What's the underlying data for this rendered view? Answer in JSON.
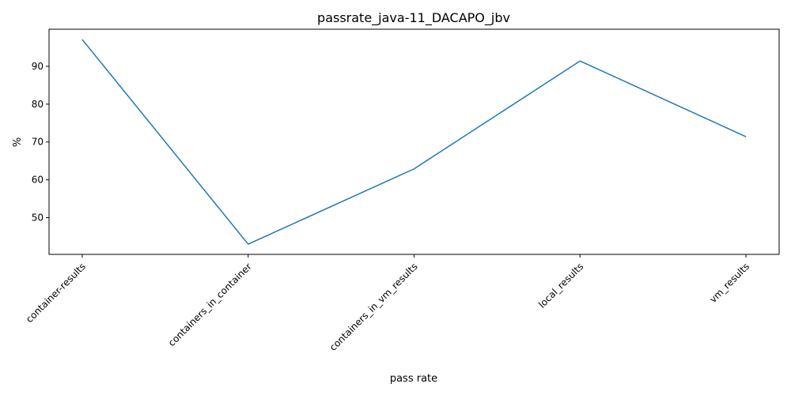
{
  "chart_data": {
    "type": "line",
    "title": "passrate_java-11_DACAPO_jbv",
    "xlabel": "pass rate",
    "ylabel": "%",
    "categories": [
      "container-results",
      "containers_in_container",
      "containers_in_vm_results",
      "local_results",
      "vm_results"
    ],
    "series": [
      {
        "values": [
          97.1,
          43.0,
          62.9,
          91.4,
          71.4
        ],
        "color": "#1f77b4"
      }
    ],
    "ylim": [
      40.3,
      99.8
    ],
    "yticks": [
      50,
      60,
      70,
      80,
      90
    ],
    "grid": false,
    "legend": "none"
  }
}
